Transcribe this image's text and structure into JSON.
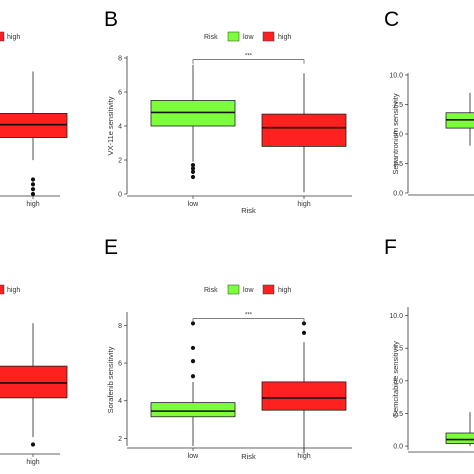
{
  "colors": {
    "low": "#7cff3a",
    "high": "#ff2020",
    "axis": "#333333"
  },
  "legend": {
    "title": "Risk",
    "labels": [
      "low",
      "high"
    ]
  },
  "chart_data": [
    {
      "id": "A",
      "type": "box",
      "categories": [
        "high"
      ],
      "boxes": [
        {
          "group": "high",
          "q1": 3.5,
          "median": 4.3,
          "q3": 5.0,
          "whisker_low": 2.1,
          "whisker_high": 7.6,
          "outliers": [
            0.9,
            0.6,
            0.3,
            0.0
          ]
        }
      ],
      "ylim": [
        0,
        8.5
      ],
      "xlabel": "",
      "ylabel": "",
      "legend_visible": [
        "high"
      ]
    },
    {
      "id": "B",
      "letter": "B",
      "type": "box",
      "categories": [
        "low",
        "high"
      ],
      "boxes": [
        {
          "group": "low",
          "q1": 4.0,
          "median": 4.8,
          "q3": 5.5,
          "whisker_low": 1.9,
          "whisker_high": 7.6,
          "outliers": [
            1.7,
            1.5,
            1.3,
            1.0
          ]
        },
        {
          "group": "high",
          "q1": 2.8,
          "median": 3.9,
          "q3": 4.7,
          "whisker_low": 0.1,
          "whisker_high": 7.1,
          "outliers": []
        }
      ],
      "ylim": [
        0,
        8
      ],
      "yticks": [
        "0",
        "2",
        "4",
        "6",
        "8"
      ],
      "xlabel": "Risk",
      "ylabel": "VX-11e sensitivity",
      "significance": "***",
      "sig_y": 7.9
    },
    {
      "id": "C",
      "letter": "C",
      "type": "box",
      "categories": [
        "low"
      ],
      "boxes": [
        {
          "group": "low",
          "q1": 5.5,
          "median": 6.2,
          "q3": 6.8,
          "whisker_low": 4.0,
          "whisker_high": 8.5,
          "outliers": []
        }
      ],
      "ylim": [
        0,
        10
      ],
      "yticks": [
        "0.0",
        "2.5",
        "5.0",
        "7.5",
        "10.0"
      ],
      "xlabel": "",
      "ylabel": "Sepantronium sensitivity"
    },
    {
      "id": "D",
      "type": "box",
      "categories": [
        "high"
      ],
      "boxes": [
        {
          "group": "high",
          "q1": 4.4,
          "median": 5.2,
          "q3": 6.1,
          "whisker_low": 2.3,
          "whisker_high": 8.4,
          "outliers": [
            1.9
          ]
        }
      ],
      "ylim": [
        1.5,
        9
      ],
      "xlabel": "",
      "ylabel": "",
      "legend_visible": [
        "high"
      ]
    },
    {
      "id": "E",
      "letter": "E",
      "type": "box",
      "categories": [
        "low",
        "high"
      ],
      "boxes": [
        {
          "group": "low",
          "q1": 3.15,
          "median": 3.45,
          "q3": 3.9,
          "whisker_low": 1.6,
          "whisker_high": 5.0,
          "outliers": [
            8.1,
            6.8,
            6.1,
            5.3
          ]
        },
        {
          "group": "high",
          "q1": 3.5,
          "median": 4.15,
          "q3": 5.0,
          "whisker_low": 1.2,
          "whisker_high": 7.1,
          "outliers": [
            8.1,
            7.6
          ]
        }
      ],
      "ylim": [
        1.6,
        8.6
      ],
      "yticks": [
        "2",
        "4",
        "6",
        "8"
      ],
      "xlabel": "Risk",
      "ylabel": "Sorafenib sensitivity",
      "significance": "***",
      "sig_y": 8.35
    },
    {
      "id": "F",
      "letter": "F",
      "type": "box",
      "categories": [
        "low"
      ],
      "boxes": [
        {
          "group": "low",
          "q1": 0.2,
          "median": 0.5,
          "q3": 1.0,
          "whisker_low": 0.0,
          "whisker_high": 2.6,
          "outliers": []
        }
      ],
      "ylim": [
        -0.3,
        10.5
      ],
      "yticks": [
        "0.0",
        "2.5",
        "5.0",
        "7.5",
        "10.0"
      ],
      "xlabel": "",
      "ylabel": "Gemcitabine sensitivity"
    }
  ]
}
